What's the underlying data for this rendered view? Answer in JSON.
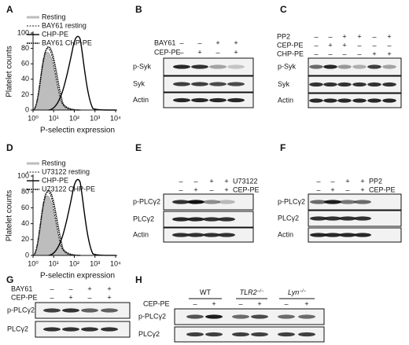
{
  "histograms": [
    {
      "letter": "A",
      "ylabel": "Platelet counts",
      "xlabel": "P-selectin expression",
      "yticks": [
        "0",
        "20",
        "40",
        "60",
        "80",
        "100"
      ],
      "xticks": [
        "10⁰",
        "10¹",
        "10²",
        "10³",
        "10⁴"
      ],
      "legend": [
        "Resting",
        "BAY61 resting",
        "CHP-PE",
        "BAY61 CHP-PE"
      ]
    },
    {
      "letter": "D",
      "ylabel": "Platelet counts",
      "xlabel": "P-selectin expression",
      "yticks": [
        "0",
        "20",
        "40",
        "60",
        "80",
        "100"
      ],
      "xticks": [
        "10⁰",
        "10¹",
        "10²",
        "10³",
        "10⁴"
      ],
      "legend": [
        "Resting",
        "U73122 resting",
        "CHP-PE",
        "U73122 CHP-PE"
      ]
    }
  ],
  "blots": [
    {
      "letter": "B",
      "conditions": [
        {
          "label": "BAY61",
          "marks": [
            "–",
            "–",
            "+",
            "+"
          ]
        },
        {
          "label": "CEP-PE",
          "marks": [
            "–",
            "+",
            "–",
            "+"
          ]
        }
      ],
      "rows": [
        "p-Syk",
        "Syk",
        "Actin"
      ]
    },
    {
      "letter": "C",
      "conditions": [
        {
          "label": "PP2",
          "marks": [
            "–",
            "–",
            "+",
            "+",
            "–",
            "+"
          ]
        },
        {
          "label": "CEP-PE",
          "marks": [
            "–",
            "+",
            "+",
            "–",
            "–",
            "–"
          ]
        },
        {
          "label": "CHP-PE",
          "marks": [
            "–",
            "–",
            "–",
            "–",
            "+",
            "+"
          ]
        }
      ],
      "rows": [
        "p-Syk",
        "Syk",
        "Actin"
      ]
    },
    {
      "letter": "E",
      "conditions": [
        {
          "label": "U73122",
          "marks": [
            "–",
            "–",
            "+",
            "+"
          ]
        },
        {
          "label": "CEP-PE",
          "marks": [
            "–",
            "+",
            "–",
            "+"
          ]
        }
      ],
      "rows": [
        "p-PLCγ2",
        "PLCγ2",
        "Actin"
      ]
    },
    {
      "letter": "F",
      "conditions": [
        {
          "label": "PP2",
          "marks": [
            "–",
            "–",
            "+",
            "+"
          ]
        },
        {
          "label": "CEP-PE",
          "marks": [
            "–",
            "+",
            "–",
            "+"
          ]
        }
      ],
      "rows": [
        "p-PLCγ2",
        "PLCγ2",
        "Actin"
      ]
    },
    {
      "letter": "G",
      "conditions": [
        {
          "label": "BAY61",
          "marks": [
            "–",
            "–",
            "+",
            "+"
          ]
        },
        {
          "label": "CEP-PE",
          "marks": [
            "–",
            "+",
            "–",
            "+"
          ]
        }
      ],
      "rows": [
        "p-PLCγ2",
        "PLCγ2"
      ]
    },
    {
      "letter": "H",
      "groups": [
        {
          "name": "WT"
        },
        {
          "name": "TLR2",
          "sup": "−/−"
        },
        {
          "name": "Lyn",
          "sup": "−/−"
        }
      ],
      "conditions": [
        {
          "label": "CEP-PE",
          "marks": [
            "–",
            "+",
            "–",
            "+",
            "–",
            "+"
          ]
        }
      ],
      "rows": [
        "p-PLCγ2",
        "PLCγ2"
      ]
    }
  ]
}
